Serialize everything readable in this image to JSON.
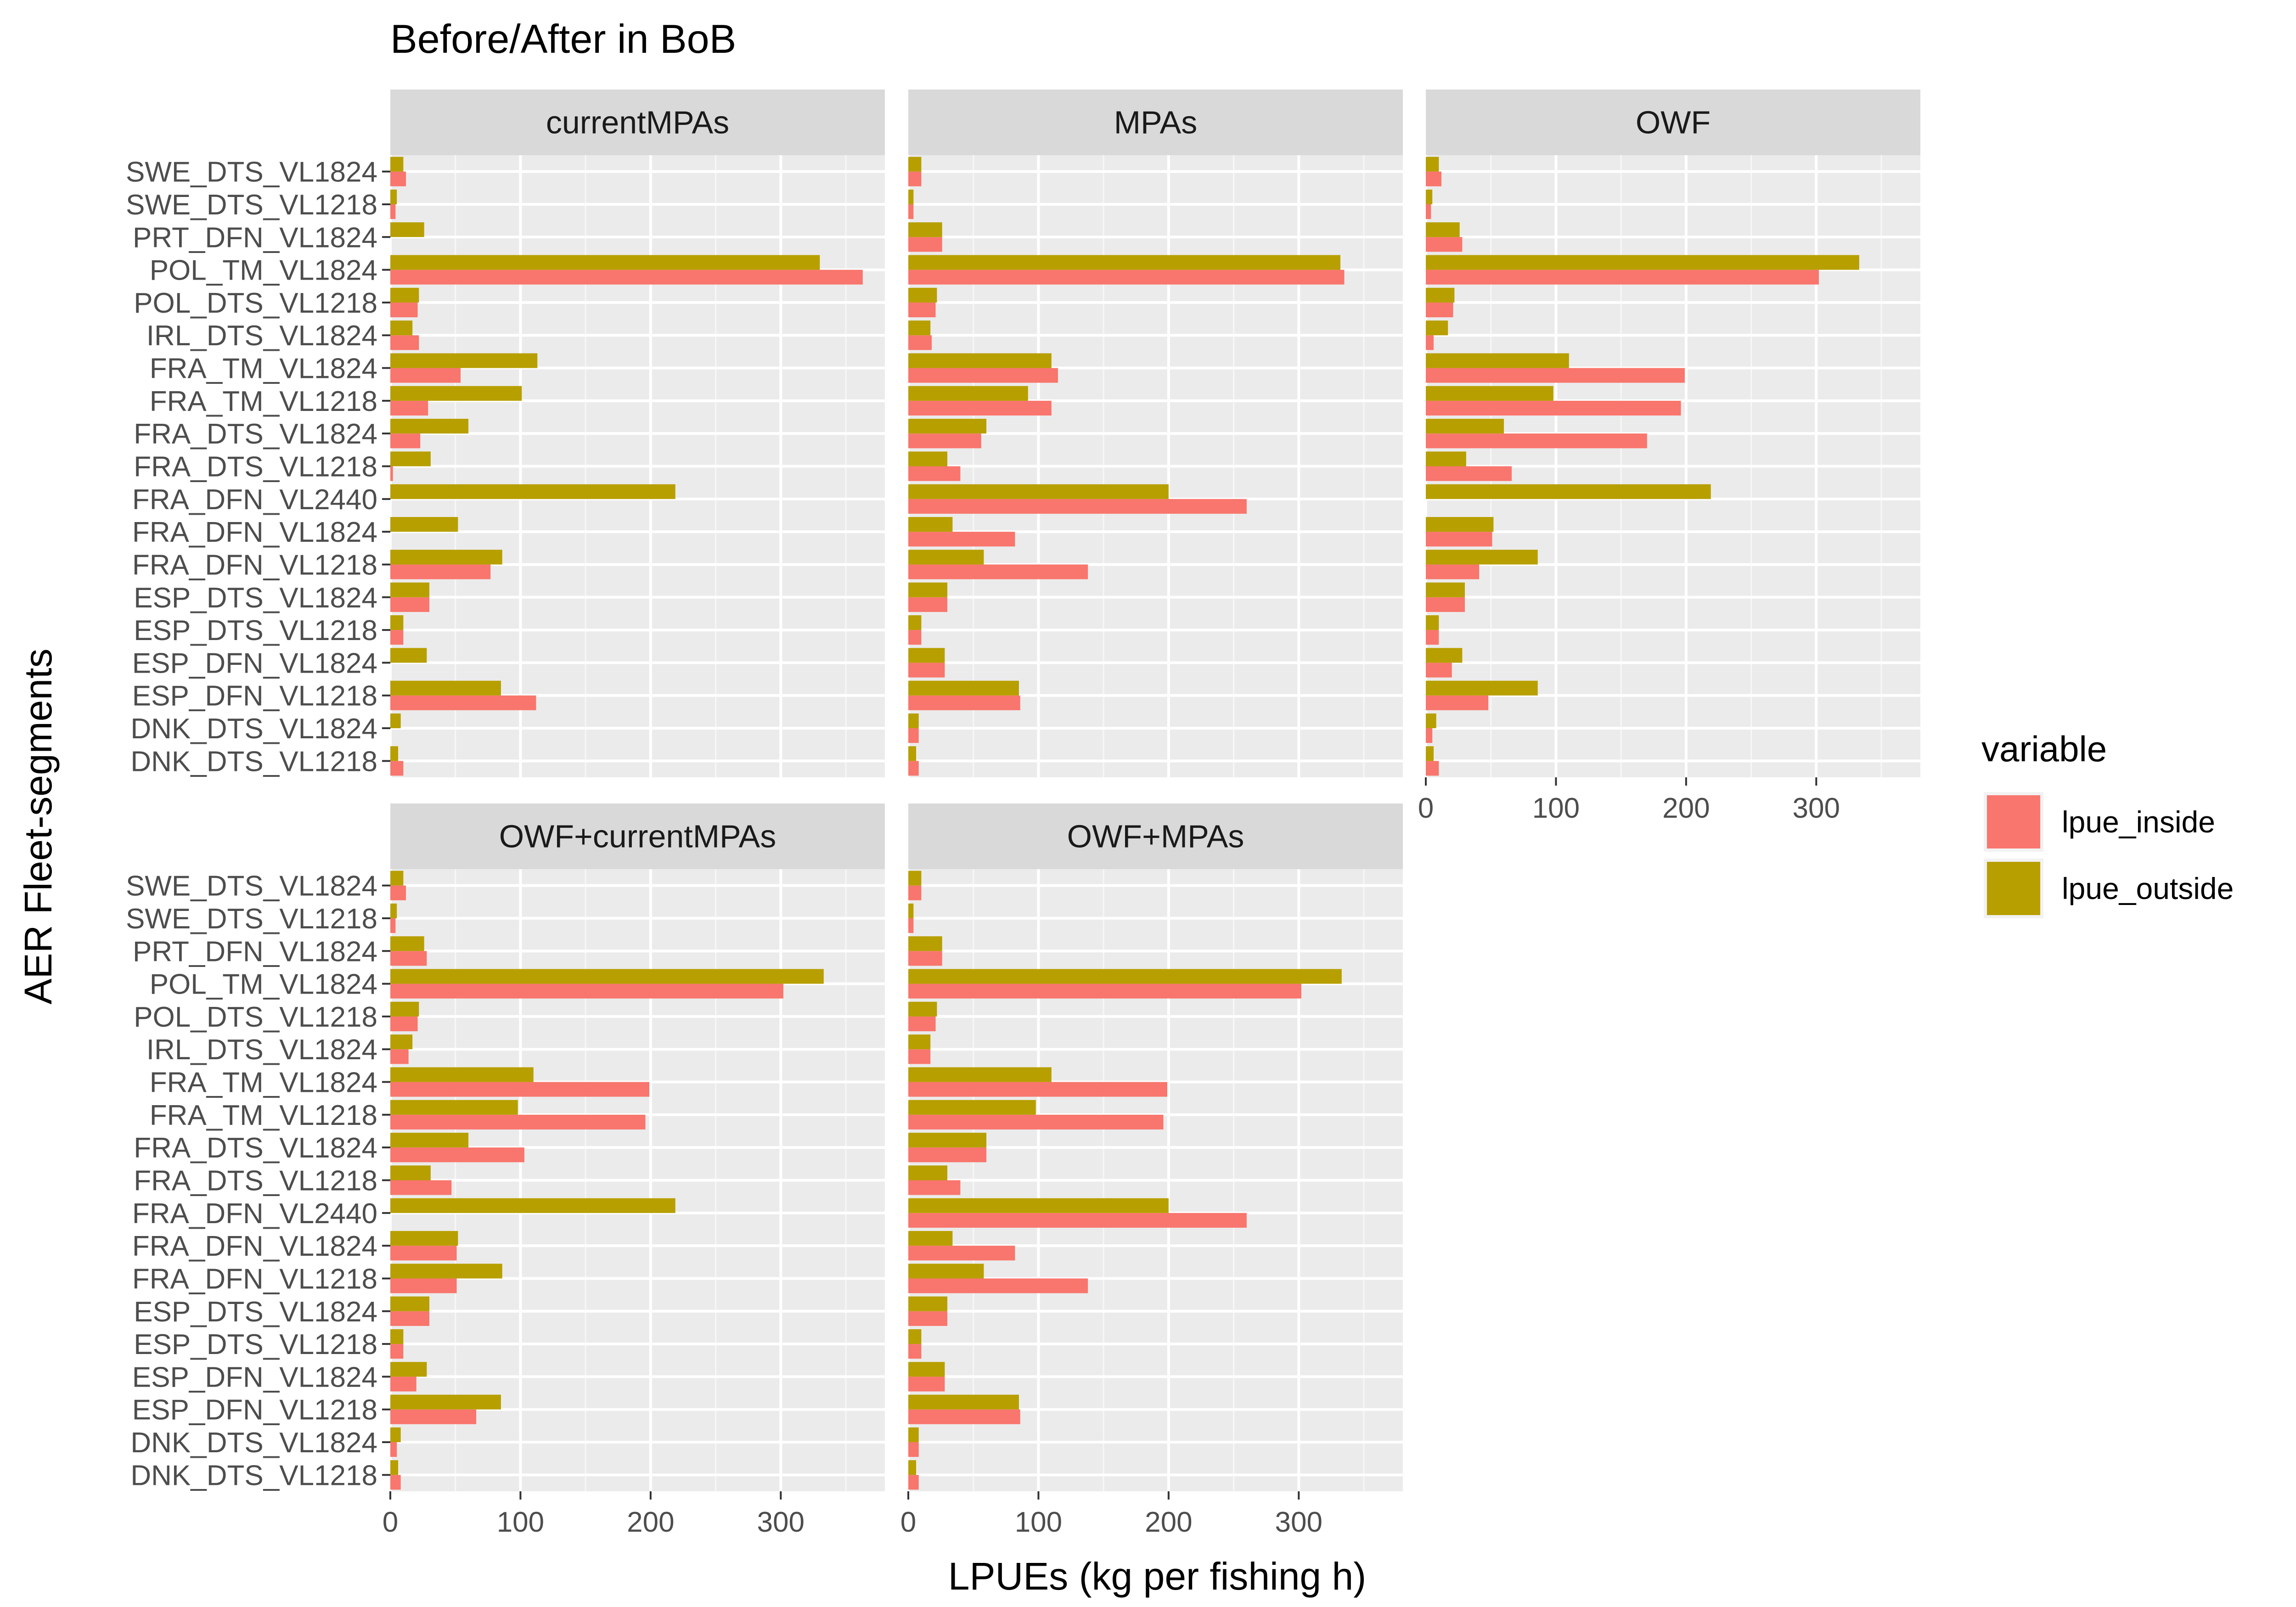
{
  "chart_data": {
    "type": "bar",
    "orientation": "horizontal",
    "title": "Before/After in BoB",
    "xlabel": "LPUEs (kg per fishing h)",
    "ylabel": "AER Fleet-segments",
    "xlim": [
      0,
      380
    ],
    "xticks": [
      0,
      100,
      200,
      300
    ],
    "grid": true,
    "legend": {
      "title": "variable",
      "placement": "right",
      "entries": [
        {
          "name": "lpue_inside",
          "color": "#F8766D"
        },
        {
          "name": "lpue_outside",
          "color": "#B79F00"
        }
      ]
    },
    "colors": {
      "panel_background": "#EBEBEB",
      "strip_background": "#D9D9D9",
      "grid_major": "#FFFFFF",
      "text": "#1A1A1A",
      "axis_text": "#4D4D4D"
    },
    "categories": [
      "SWE_DTS_VL1824",
      "SWE_DTS_VL1218",
      "PRT_DFN_VL1824",
      "POL_TM_VL1824",
      "POL_DTS_VL1218",
      "IRL_DTS_VL1824",
      "FRA_TM_VL1824",
      "FRA_TM_VL1218",
      "FRA_DTS_VL1824",
      "FRA_DTS_VL1218",
      "FRA_DFN_VL2440",
      "FRA_DFN_VL1824",
      "FRA_DFN_VL1218",
      "ESP_DTS_VL1824",
      "ESP_DTS_VL1218",
      "ESP_DFN_VL1824",
      "ESP_DFN_VL1218",
      "DNK_DTS_VL1824",
      "DNK_DTS_VL1218"
    ],
    "panels": [
      {
        "title": "currentMPAs",
        "series": [
          {
            "name": "lpue_inside",
            "values": [
              12,
              4,
              0,
              363,
              21,
              22,
              54,
              29,
              23,
              2,
              0,
              0,
              77,
              30,
              10,
              0,
              112,
              0,
              10
            ]
          },
          {
            "name": "lpue_outside",
            "values": [
              10,
              5,
              26,
              330,
              22,
              17,
              113,
              101,
              60,
              31,
              219,
              52,
              86,
              30,
              10,
              28,
              85,
              8,
              6
            ]
          }
        ]
      },
      {
        "title": "MPAs",
        "series": [
          {
            "name": "lpue_inside",
            "values": [
              10,
              4,
              26,
              335,
              21,
              18,
              115,
              110,
              56,
              40,
              260,
              82,
              138,
              30,
              10,
              28,
              86,
              8,
              8
            ]
          },
          {
            "name": "lpue_outside",
            "values": [
              10,
              4,
              26,
              332,
              22,
              17,
              110,
              92,
              60,
              30,
              200,
              34,
              58,
              30,
              10,
              28,
              85,
              8,
              6
            ]
          }
        ]
      },
      {
        "title": "OWF",
        "series": [
          {
            "name": "lpue_inside",
            "values": [
              12,
              4,
              28,
              302,
              21,
              6,
              199,
              196,
              170,
              66,
              0,
              51,
              41,
              30,
              10,
              20,
              48,
              5,
              10
            ]
          },
          {
            "name": "lpue_outside",
            "values": [
              10,
              5,
              26,
              333,
              22,
              17,
              110,
              98,
              60,
              31,
              219,
              52,
              86,
              30,
              10,
              28,
              86,
              8,
              6
            ]
          }
        ]
      },
      {
        "title": "OWF+currentMPAs",
        "series": [
          {
            "name": "lpue_inside",
            "values": [
              12,
              4,
              28,
              302,
              21,
              14,
              199,
              196,
              103,
              47,
              0,
              51,
              51,
              30,
              10,
              20,
              66,
              5,
              8
            ]
          },
          {
            "name": "lpue_outside",
            "values": [
              10,
              5,
              26,
              333,
              22,
              17,
              110,
              98,
              60,
              31,
              219,
              52,
              86,
              30,
              10,
              28,
              85,
              8,
              6
            ]
          }
        ]
      },
      {
        "title": "OWF+MPAs",
        "series": [
          {
            "name": "lpue_inside",
            "values": [
              10,
              4,
              26,
              302,
              21,
              17,
              199,
              196,
              60,
              40,
              260,
              82,
              138,
              30,
              10,
              28,
              86,
              8,
              8
            ]
          },
          {
            "name": "lpue_outside",
            "values": [
              10,
              4,
              26,
              333,
              22,
              17,
              110,
              98,
              60,
              30,
              200,
              34,
              58,
              30,
              10,
              28,
              85,
              8,
              6
            ]
          }
        ]
      }
    ]
  }
}
